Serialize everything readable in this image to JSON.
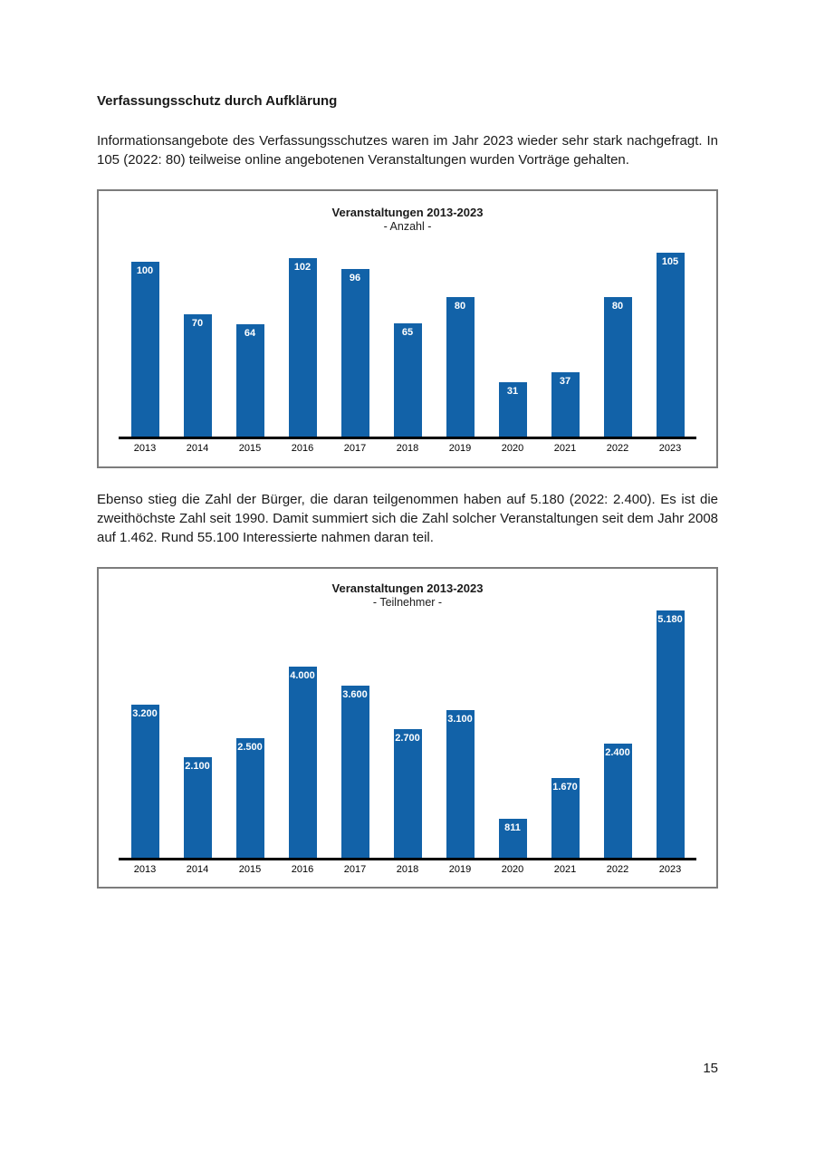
{
  "document": {
    "heading": "Verfassungsschutz durch Aufklärung",
    "paragraph1": "Informationsangebote des Verfassungsschutzes waren im Jahr 2023 wieder sehr stark nachgefragt. In 105 (2022: 80) teilweise online angebotenen Veranstaltungen wurden Vorträge gehalten.",
    "paragraph2": "Ebenso stieg die Zahl der Bürger, die daran teilgenommen haben auf 5.180 (2022: 2.400). Es ist die zweithöchste Zahl seit 1990. Damit summiert sich die Zahl solcher Veranstaltungen seit dem Jahr 2008 auf 1.462. Rund 55.100 Interessierte nahmen daran teil.",
    "page_number": "15"
  },
  "chart_data": [
    {
      "type": "bar",
      "title": "Veranstaltungen 2013-2023",
      "subtitle": "- Anzahl -",
      "categories": [
        "2013",
        "2014",
        "2015",
        "2016",
        "2017",
        "2018",
        "2019",
        "2020",
        "2021",
        "2022",
        "2023"
      ],
      "values": [
        100,
        70,
        64,
        102,
        96,
        65,
        80,
        31,
        37,
        80,
        105
      ],
      "value_labels": [
        "100",
        "70",
        "64",
        "102",
        "96",
        "65",
        "80",
        "31",
        "37",
        "80",
        "105"
      ],
      "xlabel": "",
      "ylabel": "",
      "ylim": [
        0,
        116
      ],
      "grid": false,
      "legend": false,
      "bar_color": "#1262a8",
      "axis_color": "#000000"
    },
    {
      "type": "bar",
      "title": "Veranstaltungen 2013-2023",
      "subtitle": "- Teilnehmer -",
      "categories": [
        "2013",
        "2014",
        "2015",
        "2016",
        "2017",
        "2018",
        "2019",
        "2020",
        "2021",
        "2022",
        "2023"
      ],
      "values": [
        3200,
        2100,
        2500,
        4000,
        3600,
        2700,
        3100,
        811,
        1670,
        2400,
        5180
      ],
      "value_labels": [
        "3.200",
        "2.100",
        "2.500",
        "4.000",
        "3.600",
        "2.700",
        "3.100",
        "811",
        "1.670",
        "2.400",
        "5.180"
      ],
      "xlabel": "",
      "ylabel": "",
      "ylim": [
        0,
        5200
      ],
      "grid": false,
      "legend": false,
      "bar_color": "#1262a8",
      "axis_color": "#000000"
    }
  ]
}
